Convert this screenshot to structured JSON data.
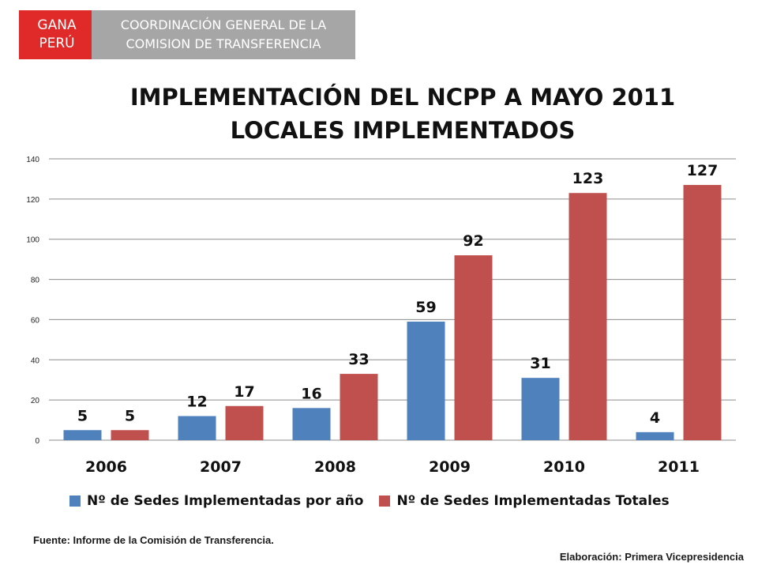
{
  "header": {
    "badge_line1": "GANA",
    "badge_line2": "PERÚ",
    "org_line1": "COORDINACIÓN GENERAL DE LA",
    "org_line2": "COMISION DE TRANSFERENCIA"
  },
  "titles": {
    "line1": "IMPLEMENTACIÓN DEL NCPP A MAYO 2011",
    "line2": "LOCALES IMPLEMENTADOS"
  },
  "colors": {
    "series1": "#4f81bd",
    "series2": "#c0504d",
    "badge_red": "#e02a2a",
    "badge_gray": "#a6a6a6"
  },
  "chart_data": {
    "type": "bar",
    "title": "IMPLEMENTACIÓN DEL NCPP A MAYO 2011 / LOCALES IMPLEMENTADOS",
    "categories": [
      "2006",
      "2007",
      "2008",
      "2009",
      "2010",
      "2011"
    ],
    "series": [
      {
        "name": "Nº de Sedes Implementadas por año",
        "values": [
          5,
          12,
          16,
          59,
          31,
          4
        ]
      },
      {
        "name": "Nº de Sedes Implementadas Totales",
        "values": [
          5,
          17,
          33,
          92,
          123,
          127
        ]
      }
    ],
    "ylim": [
      0,
      140
    ],
    "yticks": [
      0,
      20,
      40,
      60,
      80,
      100,
      120,
      140
    ],
    "grid": true,
    "legend": "bottom",
    "data_labels": true
  },
  "footer": {
    "source": "Fuente: Informe de la Comisión de Transferencia.",
    "credit": "Elaboración: Primera Vicepresidencia"
  }
}
